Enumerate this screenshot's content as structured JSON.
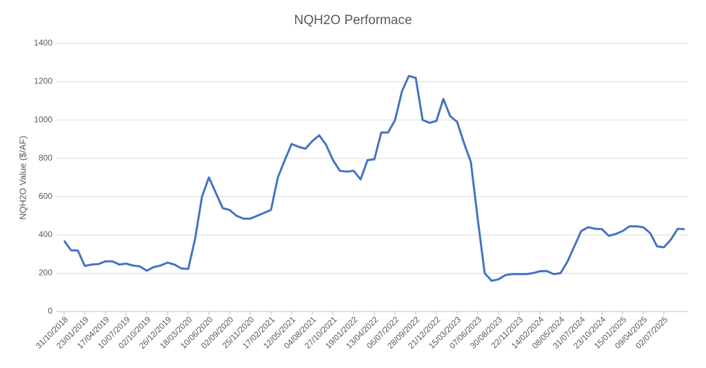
{
  "chart_data": {
    "type": "line",
    "title": "NQH2O Performace",
    "y_label": "NQH2O Value ($/AF)",
    "categories": [
      "31/10/2018",
      null,
      null,
      "23/01/2019",
      null,
      null,
      "17/04/2019",
      null,
      null,
      "10/07/2019",
      null,
      null,
      "02/10/2019",
      null,
      null,
      "26/12/2019",
      null,
      null,
      "18/03/2020",
      null,
      null,
      "10/06/2020",
      null,
      null,
      "02/09/2020",
      null,
      null,
      "25/11/2020",
      null,
      null,
      "17/02/2021",
      null,
      null,
      "12/05/2021",
      null,
      null,
      "04/08/2021",
      null,
      null,
      "27/10/2021",
      null,
      null,
      "19/01/2022",
      null,
      null,
      "13/04/2022",
      null,
      null,
      "06/07/2022",
      null,
      null,
      "28/09/2022",
      null,
      null,
      "21/12/2022",
      null,
      null,
      "15/03/2023",
      null,
      null,
      "07/06/2023",
      null,
      null,
      "30/08/2023",
      null,
      null,
      "22/11/2023",
      null,
      null,
      "14/02/2024",
      null,
      null,
      "08/05/2024",
      null,
      null,
      "31/07/2024",
      null,
      null,
      "23/10/2024",
      null,
      null,
      "15/01/2025",
      null,
      null,
      "09/04/2025",
      null,
      null,
      "02/07/2025",
      null,
      null,
      null
    ],
    "series": [
      {
        "name": "NQH2O",
        "color": "#4472c4",
        "values": [
          370,
          320,
          318,
          238,
          245,
          248,
          262,
          262,
          245,
          250,
          240,
          235,
          213,
          232,
          240,
          255,
          245,
          225,
          222,
          380,
          600,
          700,
          620,
          540,
          530,
          500,
          485,
          485,
          500,
          515,
          530,
          700,
          790,
          875,
          860,
          850,
          890,
          920,
          870,
          790,
          735,
          730,
          735,
          690,
          790,
          795,
          935,
          935,
          1000,
          1150,
          1230,
          1220,
          1000,
          985,
          995,
          1110,
          1020,
          990,
          880,
          780,
          480,
          200,
          160,
          168,
          190,
          195,
          195,
          195,
          200,
          210,
          212,
          195,
          200,
          260,
          340,
          420,
          440,
          432,
          430,
          395,
          405,
          420,
          445,
          445,
          440,
          410,
          340,
          335,
          375,
          432,
          430
        ]
      }
    ],
    "ylim": [
      0,
      1400
    ],
    "yticks": [
      0,
      200,
      400,
      600,
      800,
      1000,
      1200,
      1400
    ],
    "grid": true
  }
}
